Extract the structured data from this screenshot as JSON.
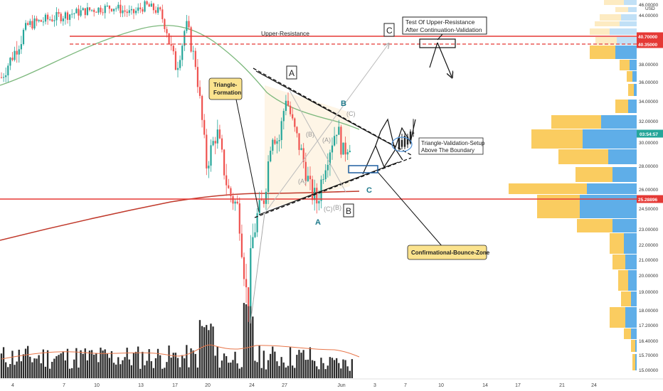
{
  "chart_data": {
    "type": "candlestick",
    "price_axis": {
      "unit_label": "USD",
      "ticks": [
        "46.00000",
        "44.00000",
        "40.70000",
        "40.35000",
        "38.00000",
        "36.00000",
        "34.00000",
        "32.00000",
        "30.00000",
        "28.00000",
        "26.00000",
        "25.28896",
        "24.50000",
        "23.00000",
        "22.00000",
        "21.00000",
        "20.00000",
        "19.00000",
        "18.00000",
        "17.20000",
        "16.40000",
        "15.70000",
        "15.00000"
      ],
      "tick_values": [
        46.0,
        44.0,
        40.7,
        40.35,
        38.0,
        36.0,
        34.0,
        32.0,
        30.0,
        28.0,
        26.0,
        25.28896,
        24.5,
        23.0,
        22.0,
        21.0,
        20.0,
        19.0,
        18.0,
        17.2,
        16.4,
        15.7,
        15.0
      ],
      "current_price_tag": "03:54:57",
      "current_price": 30.8,
      "highlighted": [
        {
          "label": "40.70000",
          "value": 40.7,
          "color": "#e53935"
        },
        {
          "label": "40.35000",
          "value": 40.35,
          "color": "#e53935"
        },
        {
          "label": "25.28896",
          "value": 25.28896,
          "color": "#e53935"
        }
      ]
    },
    "time_axis": {
      "ticks": [
        "4",
        "7",
        "10",
        "13",
        "17",
        "20",
        "24",
        "27",
        "Jun",
        "3",
        "7",
        "10",
        "14",
        "17",
        "21",
        "24"
      ],
      "tick_dates": [
        "2021-05-04",
        "2021-05-07",
        "2021-05-10",
        "2021-05-13",
        "2021-05-17",
        "2021-05-20",
        "2021-05-24",
        "2021-05-27",
        "2021-06-01",
        "2021-06-03",
        "2021-06-07",
        "2021-06-10",
        "2021-06-14",
        "2021-06-17",
        "2021-06-21",
        "2021-06-24"
      ]
    },
    "horizontal_lines": [
      {
        "label": "Upper-Resistance",
        "value": 40.7,
        "color": "#e53935",
        "style": "solid"
      },
      {
        "value": 40.35,
        "color": "#e53935",
        "style": "dashed"
      },
      {
        "value": 25.28896,
        "color": "#e53935",
        "style": "solid"
      }
    ],
    "annotations": {
      "upper_resistance": "Upper-Resistance",
      "test_upper": "Test Of Upper-Resistance",
      "after_continuation": "After Continuation-Validation",
      "triangle_formation_1": "Triangle-",
      "triangle_formation_2": "Formation",
      "validation_setup_1": "Triangle-Validation-Setup",
      "validation_setup_2": "Above The Boundary",
      "bounce_zone": "Confirmational-Bounce-Zone",
      "box_A": "A",
      "box_B": "B",
      "box_C": "C",
      "wave_A": "A",
      "wave_B": "B",
      "wave_C": "C",
      "sub_A1": "(A)",
      "sub_B1": "(B)",
      "sub_C1": "(C)",
      "sub_A2": "(A)",
      "sub_B2": "(B)",
      "sub_C2": "(C)"
    },
    "moving_averages": [
      {
        "color": "#7cb87c",
        "description": "green MA"
      },
      {
        "color": "#c0392b",
        "description": "red MA"
      }
    ],
    "volume_profile_colors": {
      "up": "#f9c74f",
      "down": "#4ea5e6"
    }
  }
}
